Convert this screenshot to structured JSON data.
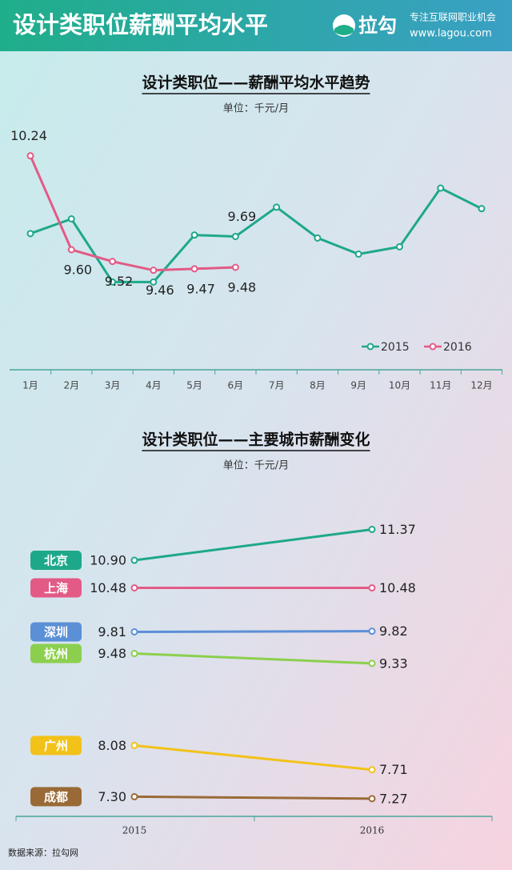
{
  "header": {
    "title": "设计类职位薪酬平均水平",
    "logo": "拉勾",
    "slogan": "专注互联网职业机会",
    "url": "www.lagou.com"
  },
  "chart_data": [
    {
      "type": "line",
      "title": "设计类职位——薪酬平均水平趋势",
      "subtitle": "单位：千元/月",
      "categories": [
        "1月",
        "2月",
        "3月",
        "4月",
        "5月",
        "6月",
        "7月",
        "8月",
        "9月",
        "10月",
        "11月",
        "12月"
      ],
      "ylim": [
        9.0,
        10.5
      ],
      "legend": "bottom-right",
      "series": [
        {
          "name": "2015",
          "color": "#1ea88a",
          "values": [
            9.71,
            9.81,
            9.38,
            9.38,
            9.7,
            9.69,
            9.89,
            9.68,
            9.57,
            9.62,
            10.02,
            9.88
          ],
          "value_labels": [
            null,
            null,
            null,
            null,
            null,
            "9.69",
            null,
            null,
            null,
            null,
            null,
            null
          ]
        },
        {
          "name": "2016",
          "color": "#e35a86",
          "values": [
            10.24,
            9.6,
            9.52,
            9.46,
            9.47,
            9.48,
            null,
            null,
            null,
            null,
            null,
            null
          ],
          "value_labels": [
            "10.24",
            "9.60",
            "9.52",
            "9.46",
            "9.47",
            "9.48",
            null,
            null,
            null,
            null,
            null,
            null
          ]
        }
      ]
    },
    {
      "type": "slope",
      "title": "设计类职位——主要城市薪酬变化",
      "subtitle": "单位：千元/月",
      "categories": [
        "2015",
        "2016"
      ],
      "ylim": [
        7.0,
        11.6
      ],
      "series": [
        {
          "name": "北京",
          "color": "#1ea88a",
          "values": [
            10.9,
            11.37
          ],
          "value_labels": [
            "10.90",
            "11.37"
          ]
        },
        {
          "name": "上海",
          "color": "#e35a86",
          "values": [
            10.48,
            10.48
          ],
          "value_labels": [
            "10.48",
            "10.48"
          ]
        },
        {
          "name": "深圳",
          "color": "#5b8fd6",
          "values": [
            9.81,
            9.82
          ],
          "value_labels": [
            "9.81",
            "9.82"
          ]
        },
        {
          "name": "杭州",
          "color": "#8ccf4e",
          "values": [
            9.48,
            9.33
          ],
          "value_labels": [
            "9.48",
            "9.33"
          ]
        },
        {
          "name": "广州",
          "color": "#f2c219",
          "values": [
            8.08,
            7.71
          ],
          "value_labels": [
            "8.08",
            "7.71"
          ]
        },
        {
          "name": "成都",
          "color": "#9a6a36",
          "values": [
            7.3,
            7.27
          ],
          "value_labels": [
            "7.30",
            "7.27"
          ]
        }
      ]
    }
  ],
  "source": "数据来源：拉勾网"
}
